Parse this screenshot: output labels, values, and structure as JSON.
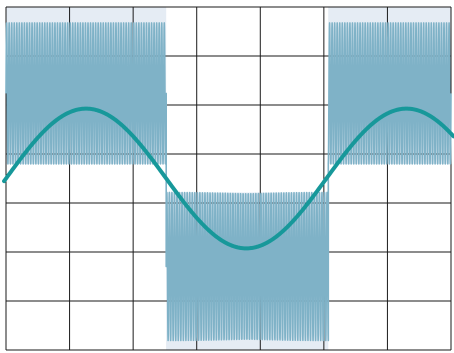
{
  "chart_data": {
    "type": "line",
    "title": "",
    "xlabel": "",
    "ylabel": "",
    "grid": true,
    "legend": "none",
    "xlim": [
      0,
      7
    ],
    "ylim": [
      -2.7,
      2.7
    ],
    "grid_cells": {
      "cols": 7,
      "rows": 7
    },
    "colors": {
      "background_light": "#ffffff",
      "background_shaded": "#e5ecf4",
      "grid": "#1a1a1a",
      "modulated_signal": "#7fb2c7",
      "sine_wave": "#17989a"
    },
    "series": [
      {
        "role": "carrier-sine",
        "x_start": -0.03,
        "x_end": 7.04,
        "amplitude": 1.1,
        "period": 5.04,
        "phase_at_x0": 0.0
      },
      {
        "role": "square-modulated-carrier",
        "segments": [
          {
            "x_start": 0.0,
            "x_end": 2.52,
            "envelope_top": 2.45,
            "envelope_bottom": 0.23
          },
          {
            "x_start": 2.52,
            "x_end": 5.07,
            "envelope_top": -0.22,
            "envelope_bottom": -2.55
          },
          {
            "x_start": 5.07,
            "x_end": 7.0,
            "envelope_top": 2.45,
            "envelope_bottom": 0.23
          }
        ],
        "oscillation_frequency": 25
      }
    ]
  }
}
